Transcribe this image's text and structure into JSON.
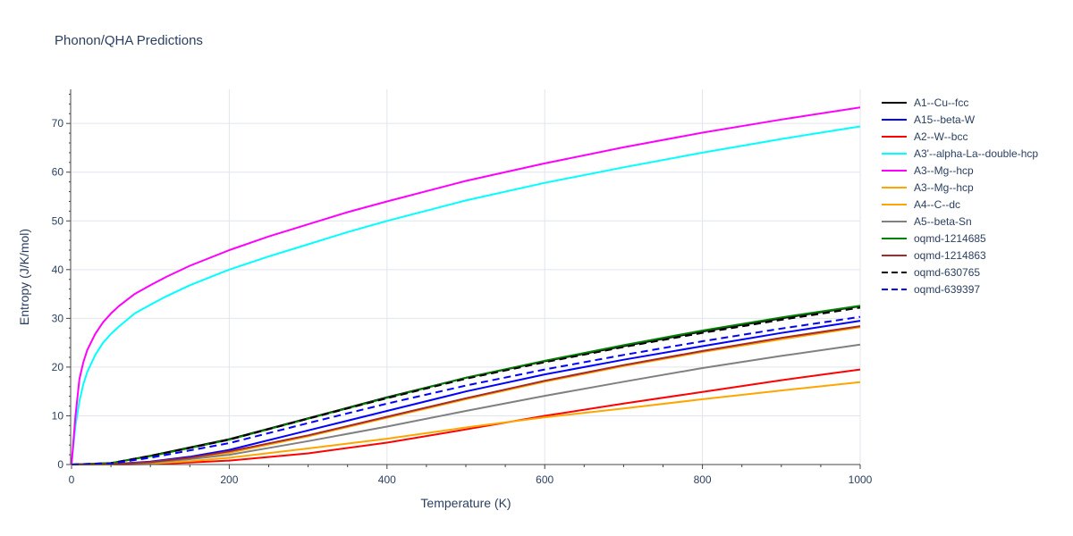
{
  "chart_data": {
    "type": "line",
    "title": "Phonon/QHA Predictions",
    "xlabel": "Temperature (K)",
    "ylabel": "Entropy (J/K/mol)",
    "xlim": [
      0,
      1000
    ],
    "ylim": [
      0,
      77
    ],
    "xticks": [
      0,
      200,
      400,
      600,
      800,
      1000
    ],
    "yticks": [
      0,
      10,
      20,
      30,
      40,
      50,
      60,
      70
    ],
    "grid": true,
    "legend_position": "right",
    "series": [
      {
        "name": "A1--Cu--fcc",
        "color": "#000000",
        "dash": false,
        "x": [
          0,
          50,
          100,
          150,
          200,
          300,
          400,
          500,
          600,
          700,
          800,
          900,
          1000
        ],
        "y": [
          0,
          0.3,
          1.8,
          3.5,
          5.2,
          9.5,
          13.8,
          17.8,
          21.2,
          24.3,
          27.3,
          30.0,
          32.5
        ]
      },
      {
        "name": "A15--beta-W",
        "color": "#0000ff",
        "dash": false,
        "x": [
          0,
          50,
          100,
          150,
          200,
          300,
          400,
          500,
          600,
          700,
          800,
          900,
          1000
        ],
        "y": [
          0,
          0.1,
          0.6,
          1.6,
          3.0,
          7.0,
          11.0,
          15.0,
          18.5,
          21.5,
          24.3,
          27.0,
          29.5
        ]
      },
      {
        "name": "A2--W--bcc",
        "color": "#ff0000",
        "dash": false,
        "x": [
          0,
          50,
          100,
          150,
          200,
          300,
          400,
          500,
          600,
          700,
          800,
          900,
          1000
        ],
        "y": [
          0,
          0,
          0.1,
          0.4,
          0.8,
          2.3,
          4.5,
          7.2,
          10.0,
          12.5,
          14.9,
          17.3,
          19.5
        ]
      },
      {
        "name": "A3'--alpha-La--double-hcp",
        "color": "#00ffff",
        "dash": false,
        "x": [
          0,
          5,
          10,
          15,
          20,
          30,
          40,
          50,
          60,
          80,
          100,
          120,
          150,
          200,
          250,
          300,
          350,
          400,
          500,
          600,
          700,
          800,
          900,
          1000
        ],
        "y": [
          0,
          8,
          13,
          16.5,
          19,
          22.5,
          25,
          26.8,
          28.3,
          31,
          32.8,
          34.5,
          36.8,
          40,
          42.7,
          45.2,
          47.7,
          50,
          54.2,
          57.8,
          61,
          64,
          66.8,
          69.4
        ]
      },
      {
        "name": "A3--Mg--hcp",
        "color": "#ff00ff",
        "dash": false,
        "x": [
          0,
          5,
          10,
          15,
          20,
          30,
          40,
          50,
          60,
          80,
          100,
          120,
          150,
          200,
          250,
          300,
          350,
          400,
          500,
          600,
          700,
          800,
          900,
          1000
        ],
        "y": [
          0,
          10,
          17.5,
          21,
          23.5,
          26.8,
          29.2,
          31,
          32.5,
          35,
          36.8,
          38.5,
          40.8,
          44,
          46.8,
          49.3,
          51.8,
          54,
          58.2,
          61.8,
          65.1,
          68.1,
          70.8,
          73.3
        ]
      },
      {
        "name": "A3--Mg--hcp",
        "color": "#ffa500",
        "dash": false,
        "x": [
          0,
          50,
          100,
          150,
          200,
          300,
          400,
          500,
          600,
          700,
          800,
          900,
          1000
        ],
        "y": [
          0,
          0,
          0.2,
          0.7,
          1.4,
          3.3,
          5.3,
          7.6,
          9.7,
          11.5,
          13.4,
          15.2,
          16.9
        ]
      },
      {
        "name": "A4--C--dc",
        "color": "#ffa500",
        "dash": false,
        "x": [
          0,
          50,
          100,
          150,
          200,
          300,
          400,
          500,
          600,
          700,
          800,
          900,
          1000
        ],
        "y": [
          0,
          0.1,
          0.4,
          1.2,
          2.4,
          5.8,
          9.6,
          13.4,
          17.0,
          20.2,
          23.1,
          25.7,
          28.2
        ]
      },
      {
        "name": "A5--beta-Sn",
        "color": "#808080",
        "dash": false,
        "x": [
          0,
          50,
          100,
          150,
          200,
          300,
          400,
          500,
          600,
          700,
          800,
          900,
          1000
        ],
        "y": [
          0,
          0.1,
          0.4,
          1.1,
          2.0,
          4.8,
          7.8,
          11.0,
          14.1,
          17.0,
          19.8,
          22.3,
          24.6
        ]
      },
      {
        "name": "oqmd-1214685",
        "color": "#008000",
        "dash": false,
        "x": [
          0,
          50,
          100,
          150,
          200,
          300,
          400,
          500,
          600,
          700,
          800,
          900,
          1000
        ],
        "y": [
          0,
          0.3,
          1.7,
          3.4,
          5.1,
          9.4,
          13.7,
          17.8,
          21.3,
          24.5,
          27.5,
          30.2,
          32.6
        ]
      },
      {
        "name": "oqmd-1214863",
        "color": "#a52a2a",
        "dash": false,
        "x": [
          0,
          50,
          100,
          150,
          200,
          300,
          400,
          500,
          600,
          700,
          800,
          900,
          1000
        ],
        "y": [
          0,
          0.1,
          0.5,
          1.4,
          2.7,
          6.0,
          9.8,
          13.6,
          17.2,
          20.4,
          23.3,
          26.0,
          28.4
        ]
      },
      {
        "name": "oqmd-630765",
        "color": "#000000",
        "dash": true,
        "x": [
          0,
          50,
          100,
          150,
          200,
          300,
          400,
          500,
          600,
          700,
          800,
          900,
          1000
        ],
        "y": [
          0,
          0.3,
          1.8,
          3.4,
          5.1,
          9.4,
          13.6,
          17.6,
          21.0,
          24.1,
          27.0,
          29.7,
          32.2
        ]
      },
      {
        "name": "oqmd-639397",
        "color": "#0000ff",
        "dash": true,
        "x": [
          0,
          50,
          100,
          150,
          200,
          300,
          400,
          500,
          600,
          700,
          800,
          900,
          1000
        ],
        "y": [
          0,
          0.2,
          1.4,
          2.9,
          4.4,
          8.5,
          12.5,
          16.2,
          19.5,
          22.5,
          25.3,
          27.9,
          30.3
        ]
      }
    ]
  }
}
